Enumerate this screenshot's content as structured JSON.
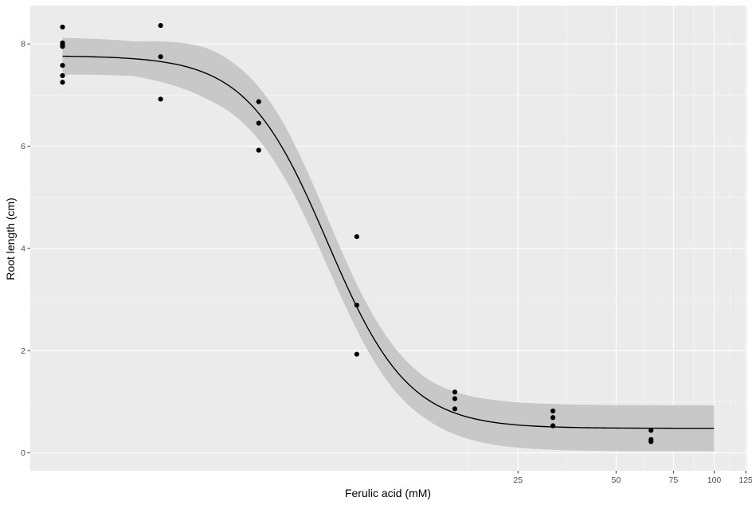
{
  "chart_data": {
    "type": "scatter",
    "title": "",
    "xlabel": "Ferulic acid (mM)",
    "ylabel": "Root length (cm)",
    "x_scale": "log",
    "x_ticks": [
      25,
      50,
      75,
      100,
      125
    ],
    "y_ticks": [
      0,
      2,
      4,
      6,
      8
    ],
    "ylim": [
      -0.35,
      8.75
    ],
    "grid": true,
    "points": [
      {
        "x": 1,
        "y": 8.33
      },
      {
        "x": 1,
        "y": 8.02
      },
      {
        "x": 1,
        "y": 7.98
      },
      {
        "x": 1,
        "y": 7.95
      },
      {
        "x": 1,
        "y": 7.58
      },
      {
        "x": 1,
        "y": 7.38
      },
      {
        "x": 1,
        "y": 7.25
      },
      {
        "x": 2,
        "y": 8.36
      },
      {
        "x": 2,
        "y": 7.75
      },
      {
        "x": 2,
        "y": 6.92
      },
      {
        "x": 4,
        "y": 6.87
      },
      {
        "x": 4,
        "y": 6.45
      },
      {
        "x": 4,
        "y": 5.92
      },
      {
        "x": 8,
        "y": 4.23
      },
      {
        "x": 8,
        "y": 2.89
      },
      {
        "x": 8,
        "y": 1.93
      },
      {
        "x": 16,
        "y": 1.19
      },
      {
        "x": 16,
        "y": 1.06
      },
      {
        "x": 16,
        "y": 0.86
      },
      {
        "x": 32,
        "y": 0.82
      },
      {
        "x": 32,
        "y": 0.69
      },
      {
        "x": 32,
        "y": 0.53
      },
      {
        "x": 64,
        "y": 0.44
      },
      {
        "x": 64,
        "y": 0.26
      },
      {
        "x": 64,
        "y": 0.22
      }
    ],
    "fit_curve": {
      "model": "log-logistic",
      "upper": 7.77,
      "lower": 0.48,
      "ec50": 6.5,
      "slope": 3.5,
      "x_range": [
        1,
        100
      ],
      "band_halfwidth": [
        0.36,
        0.34,
        0.5,
        0.52,
        0.45,
        0.4,
        0.44,
        0.45,
        0.45,
        0.45
      ]
    },
    "colors": {
      "panel": "#ebebeb",
      "grid_major": "#ffffff",
      "points": "#000000",
      "line": "#000000",
      "band": "#c8c8c8"
    }
  }
}
